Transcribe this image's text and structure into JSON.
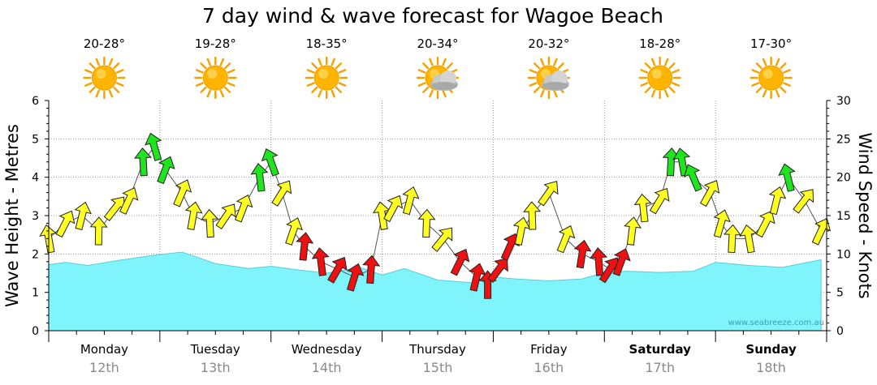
{
  "chart_data": {
    "type": "area",
    "title": "7 day wind & wave forecast for Wagoe Beach",
    "ylabel_left": "Wave Height - Metres",
    "ylabel_right": "Wind Speed - Knots",
    "ylim_left": [
      0,
      6
    ],
    "ylim_right": [
      0,
      30
    ],
    "yticks_left": [
      "0",
      "1",
      "2",
      "3",
      "4",
      "5",
      "6"
    ],
    "yticks_right": [
      "0",
      "5",
      "10",
      "15",
      "20",
      "25",
      "30"
    ],
    "watermark": "www.seabreeze.com.au",
    "days": [
      {
        "name": "Monday",
        "date": "12th",
        "temp": "20-28°",
        "weather": "sunny",
        "bold": false
      },
      {
        "name": "Tuesday",
        "date": "13th",
        "temp": "19-28°",
        "weather": "sunny",
        "bold": false
      },
      {
        "name": "Wednesday",
        "date": "14th",
        "temp": "18-35°",
        "weather": "sunny",
        "bold": false
      },
      {
        "name": "Thursday",
        "date": "15th",
        "temp": "20-34°",
        "weather": "partly-cloudy",
        "bold": false
      },
      {
        "name": "Friday",
        "date": "16th",
        "temp": "20-32°",
        "weather": "partly-cloudy",
        "bold": false
      },
      {
        "name": "Saturday",
        "date": "17th",
        "temp": "18-28°",
        "weather": "sunny",
        "bold": true
      },
      {
        "name": "Sunday",
        "date": "18th",
        "temp": "17-30°",
        "weather": "sunny",
        "bold": true
      }
    ],
    "wave": {
      "name": "Wave Height",
      "x": [
        0,
        0.15,
        0.35,
        0.6,
        0.9,
        1.2,
        1.5,
        1.8,
        2.0,
        2.2,
        2.5,
        2.8,
        3.0,
        3.2,
        3.5,
        3.8,
        4.0,
        4.2,
        4.5,
        4.8,
        5.0,
        5.2,
        5.5,
        5.8,
        6.0,
        6.3,
        6.6,
        6.95
      ],
      "values": [
        1.72,
        1.78,
        1.7,
        1.82,
        1.95,
        2.05,
        1.75,
        1.62,
        1.68,
        1.6,
        1.5,
        1.65,
        1.45,
        1.62,
        1.32,
        1.25,
        1.4,
        1.35,
        1.3,
        1.35,
        1.52,
        1.55,
        1.52,
        1.55,
        1.78,
        1.7,
        1.65,
        1.85
      ]
    },
    "wind": {
      "name": "Wind Speed",
      "x": [
        0.0,
        0.15,
        0.3,
        0.45,
        0.6,
        0.72,
        0.85,
        0.95,
        1.05,
        1.2,
        1.3,
        1.45,
        1.6,
        1.75,
        1.9,
        2.0,
        2.1,
        2.2,
        2.3,
        2.45,
        2.6,
        2.75,
        2.9,
        3.0,
        3.1,
        3.25,
        3.4,
        3.55,
        3.7,
        3.85,
        3.95,
        4.05,
        4.15,
        4.25,
        4.35,
        4.5,
        4.65,
        4.8,
        4.95,
        5.05,
        5.15,
        5.25,
        5.35,
        5.5,
        5.6,
        5.7,
        5.8,
        5.95,
        6.05,
        6.15,
        6.3,
        6.45,
        6.55,
        6.65,
        6.8,
        6.95
      ],
      "values": [
        12,
        14,
        15,
        13,
        16,
        17,
        22,
        24,
        21,
        18,
        15,
        14,
        15,
        16,
        20,
        22,
        18,
        13,
        11,
        9,
        8,
        7,
        8,
        15,
        16,
        17,
        14,
        12,
        9,
        7,
        6,
        8,
        11,
        13,
        15,
        18,
        12,
        10,
        9,
        8,
        9,
        13,
        16,
        17,
        22,
        22,
        20,
        18,
        14,
        12,
        12,
        14,
        17,
        20,
        17,
        13
      ]
    }
  }
}
